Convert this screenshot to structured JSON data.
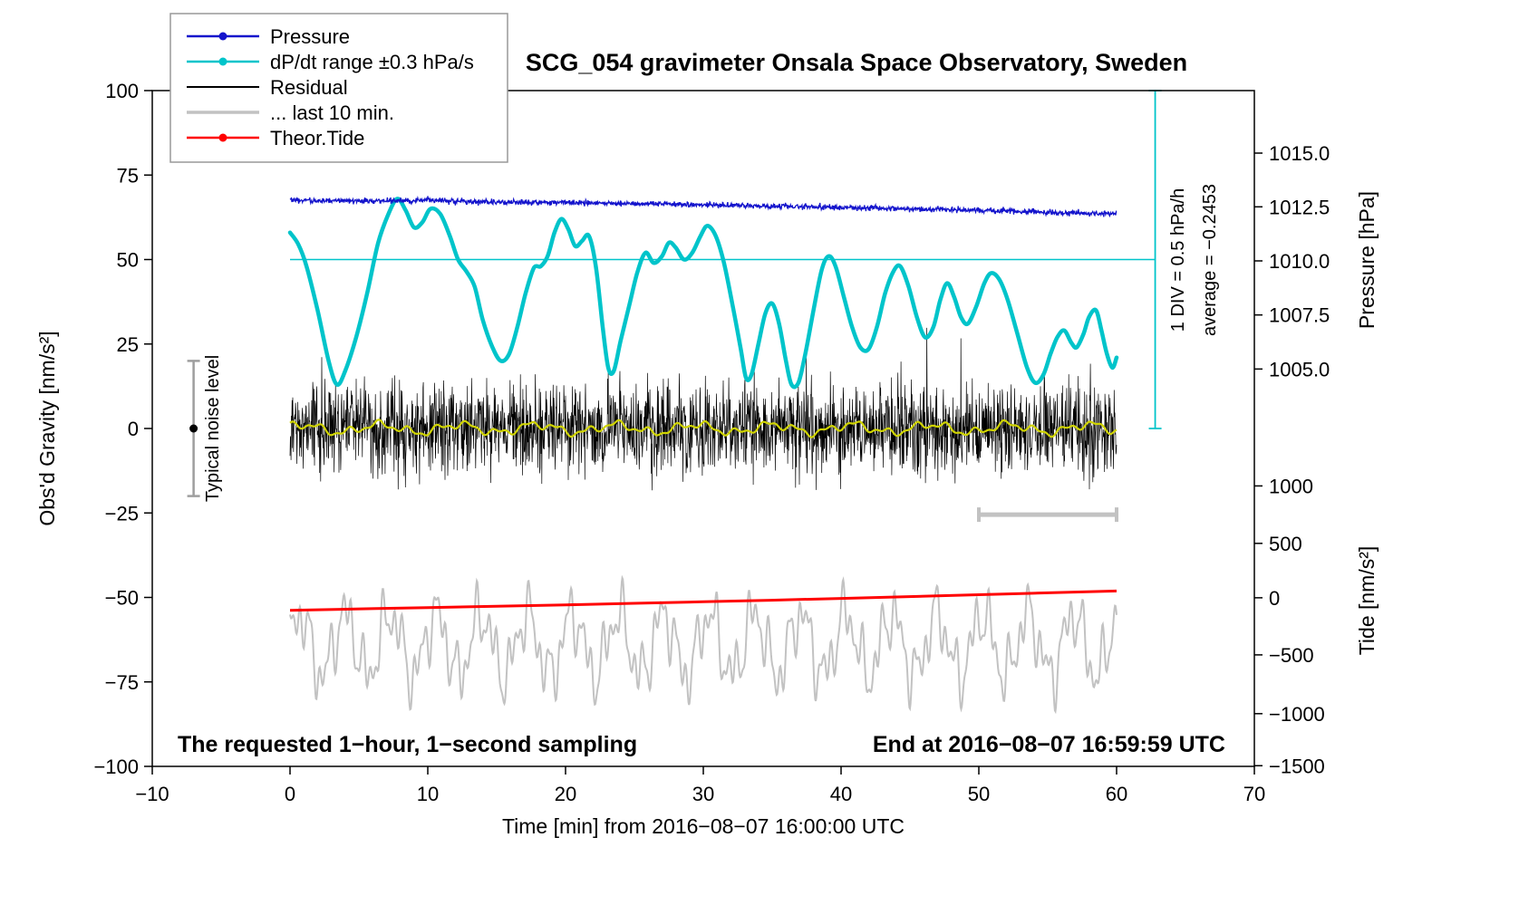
{
  "title": "SCG_054 gravimeter Onsala Space Observatory, Sweden",
  "legend": {
    "items": [
      {
        "label": "Pressure",
        "color": "#1414cc",
        "marker": true,
        "line_width": 2.5
      },
      {
        "label": "dP/dt range ±0.3 hPa/s",
        "color": "#00c4ca",
        "marker": true,
        "line_width": 2.5
      },
      {
        "label": "Residual",
        "color": "#000000",
        "marker": false,
        "line_width": 2
      },
      {
        "label": "... last 10 min.",
        "color": "#c2c2c2",
        "marker": false,
        "line_width": 3.5
      },
      {
        "label": "Theor.Tide",
        "color": "#ff0000",
        "marker": true,
        "line_width": 2.5
      }
    ]
  },
  "annotations": {
    "noise_level": "Typical noise level",
    "div_scale": "1 DIV = 0.5 hPa/h",
    "average": "average = −0.2453",
    "sampling_note": "The requested 1−hour, 1−second sampling",
    "end_time": "End at 2016−08−07 16:59:59 UTC"
  },
  "axes": {
    "x": {
      "label": "Time [min] from 2016−08−07 16:00:00 UTC",
      "min": -10,
      "max": 70,
      "ticks": [
        {
          "label": "−10",
          "v": -10
        },
        {
          "label": "0",
          "v": 0
        },
        {
          "label": "10",
          "v": 10
        },
        {
          "label": "20",
          "v": 20
        },
        {
          "label": "30",
          "v": 30
        },
        {
          "label": "40",
          "v": 40
        },
        {
          "label": "50",
          "v": 50
        },
        {
          "label": "60",
          "v": 60
        },
        {
          "label": "70",
          "v": 70
        }
      ]
    },
    "gravity": {
      "label": "Obs'd Gravity [nm/s²]",
      "min": -100,
      "max": 100,
      "ticks": [
        {
          "label": "100",
          "v": 100
        },
        {
          "label": "75",
          "v": 75
        },
        {
          "label": "50",
          "v": 50
        },
        {
          "label": "25",
          "v": 25
        },
        {
          "label": "0",
          "v": 0
        },
        {
          "label": "−25",
          "v": -25
        },
        {
          "label": "−50",
          "v": -50
        },
        {
          "label": "−75",
          "v": -75
        },
        {
          "label": "−100",
          "v": -100
        }
      ]
    },
    "pressure": {
      "label": "Pressure [hPa]",
      "ticks": [
        {
          "label": "1015.0",
          "g": 81.5
        },
        {
          "label": "1012.5",
          "g": 65.6
        },
        {
          "label": "1010.0",
          "g": 49.6
        },
        {
          "label": "1007.5",
          "g": 33.6
        },
        {
          "label": "1005.0",
          "g": 17.6
        },
        {
          "label": "1000",
          "g": -17.0
        }
      ]
    },
    "tide": {
      "label": "Tide [nm/s²]",
      "ticks": [
        {
          "label": "500",
          "g": -34.0
        },
        {
          "label": "0",
          "g": -50.1
        },
        {
          "label": "−500",
          "g": -67.0
        },
        {
          "label": "−1000",
          "g": -84.4
        },
        {
          "label": "−1500",
          "g": -99.8
        }
      ]
    }
  },
  "chart_data": {
    "type": "line",
    "title": "SCG_054 gravimeter Onsala Space Observatory, Sweden",
    "xlabel": "Time [min] from 2016−08−07 16:00:00 UTC",
    "ylabel": "Obs'd Gravity [nm/s²]",
    "xlim": [
      -10,
      70
    ],
    "ylim": [
      -100,
      100
    ],
    "grid": false,
    "legend_position": "top-left",
    "series": [
      {
        "id": "pressure",
        "name": "Pressure",
        "color": "#1414cc",
        "axis": "right-pressure",
        "x": [
          0,
          5,
          10,
          15,
          20,
          25,
          30,
          35,
          40,
          45,
          50,
          55,
          60
        ],
        "y_gravity": [
          67.5,
          67.3,
          67.6,
          67.0,
          66.8,
          66.5,
          66.2,
          65.8,
          65.4,
          65.0,
          64.6,
          64.0,
          63.4
        ],
        "values_hpa": [
          1012.8,
          1012.8,
          1012.8,
          1012.7,
          1012.7,
          1012.6,
          1012.6,
          1012.5,
          1012.4,
          1012.4,
          1012.3,
          1012.2,
          1012.1
        ],
        "noise_std": 0.4
      },
      {
        "id": "dpdt",
        "name": "dP/dt range ±0.3 hPa/s",
        "color": "#00c4ca",
        "zero_level_gravity": 50,
        "points": [
          [
            0,
            58
          ],
          [
            0.6,
            54.5
          ],
          [
            1.2,
            48
          ],
          [
            2,
            35
          ],
          [
            2.8,
            20
          ],
          [
            3.4,
            13
          ],
          [
            4,
            17
          ],
          [
            4.8,
            27
          ],
          [
            5.6,
            40
          ],
          [
            6.4,
            55
          ],
          [
            7.2,
            64
          ],
          [
            7.8,
            68
          ],
          [
            8.4,
            64.5
          ],
          [
            9,
            59.5
          ],
          [
            9.6,
            61
          ],
          [
            10.2,
            65
          ],
          [
            10.9,
            63.5
          ],
          [
            11.6,
            57
          ],
          [
            12.2,
            50
          ],
          [
            12.8,
            46.5
          ],
          [
            13.4,
            42
          ],
          [
            14,
            32
          ],
          [
            14.7,
            24
          ],
          [
            15.3,
            20
          ],
          [
            15.9,
            22
          ],
          [
            16.5,
            30
          ],
          [
            17.1,
            40
          ],
          [
            17.7,
            47.5
          ],
          [
            18.2,
            48
          ],
          [
            18.7,
            51
          ],
          [
            19.2,
            58
          ],
          [
            19.7,
            62
          ],
          [
            20.2,
            59
          ],
          [
            20.7,
            54
          ],
          [
            21.2,
            55.5
          ],
          [
            21.7,
            57
          ],
          [
            22.2,
            48
          ],
          [
            22.7,
            30
          ],
          [
            23.1,
            18
          ],
          [
            23.5,
            17
          ],
          [
            24,
            26
          ],
          [
            24.6,
            36
          ],
          [
            25.2,
            46
          ],
          [
            25.8,
            52
          ],
          [
            26.4,
            49
          ],
          [
            27,
            51
          ],
          [
            27.5,
            55
          ],
          [
            28,
            53.5
          ],
          [
            28.6,
            50
          ],
          [
            29.2,
            52
          ],
          [
            29.8,
            57
          ],
          [
            30.3,
            60
          ],
          [
            30.9,
            57
          ],
          [
            31.5,
            49
          ],
          [
            32.1,
            37
          ],
          [
            32.7,
            24
          ],
          [
            33.1,
            15
          ],
          [
            33.5,
            16
          ],
          [
            34,
            25
          ],
          [
            34.5,
            34
          ],
          [
            35,
            37
          ],
          [
            35.5,
            31
          ],
          [
            36,
            20
          ],
          [
            36.4,
            13
          ],
          [
            36.9,
            13.5
          ],
          [
            37.4,
            22
          ],
          [
            38,
            35
          ],
          [
            38.6,
            47
          ],
          [
            39.1,
            51
          ],
          [
            39.6,
            48
          ],
          [
            40.2,
            39
          ],
          [
            40.8,
            30
          ],
          [
            41.4,
            24
          ],
          [
            42,
            23.5
          ],
          [
            42.6,
            30
          ],
          [
            43.2,
            40
          ],
          [
            43.8,
            46.5
          ],
          [
            44.3,
            48
          ],
          [
            44.9,
            42
          ],
          [
            45.5,
            33
          ],
          [
            46.1,
            27
          ],
          [
            46.7,
            30
          ],
          [
            47.2,
            38
          ],
          [
            47.7,
            43
          ],
          [
            48.2,
            39
          ],
          [
            48.7,
            33
          ],
          [
            49.2,
            31
          ],
          [
            49.8,
            36
          ],
          [
            50.4,
            43
          ],
          [
            50.9,
            46
          ],
          [
            51.5,
            44
          ],
          [
            52.1,
            38
          ],
          [
            52.8,
            28
          ],
          [
            53.5,
            18
          ],
          [
            54.1,
            13.5
          ],
          [
            54.7,
            16
          ],
          [
            55.2,
            22
          ],
          [
            55.7,
            27
          ],
          [
            56.2,
            29
          ],
          [
            56.7,
            25.5
          ],
          [
            57.1,
            24
          ],
          [
            57.6,
            28
          ],
          [
            58,
            33
          ],
          [
            58.5,
            35
          ],
          [
            58.9,
            29
          ],
          [
            59.3,
            22
          ],
          [
            59.7,
            18
          ],
          [
            60,
            21
          ]
        ]
      },
      {
        "id": "residual",
        "name": "Residual",
        "color": "#000000",
        "x_range": [
          0,
          60
        ],
        "mean": 0,
        "std": 6.5,
        "clip": 30,
        "n": 2400
      },
      {
        "id": "residual_smooth",
        "name": "Residual (smoothed)",
        "color": "#d0d400",
        "center": 0,
        "harmonics": [
          [
            1.2,
            1.1,
            0.7
          ],
          [
            0.9,
            2.9,
            1.8
          ],
          [
            0.5,
            6.1,
            0.0
          ]
        ]
      },
      {
        "id": "last10",
        "name": "... last 10 min.",
        "color": "#c2c2c2",
        "center": -64,
        "harmonics": [
          [
            9,
            1.9,
            0.3
          ],
          [
            5,
            4.7,
            1.2
          ],
          [
            4.5,
            8.3,
            2.1
          ],
          [
            3,
            13.7,
            4.0
          ]
        ]
      },
      {
        "id": "tide",
        "name": "Theor.Tide",
        "color": "#ff0000",
        "axis": "right-tide",
        "x": [
          0,
          10,
          20,
          30,
          40,
          50,
          60
        ],
        "y_gravity": [
          -53.8,
          -53.0,
          -52.2,
          -51.3,
          -50.3,
          -49.2,
          -48.1
        ],
        "values_tide_nms2": [
          -115,
          -91,
          -66,
          -39,
          -9,
          24,
          57
        ]
      }
    ],
    "overlays": {
      "dpdt_zero_line": {
        "y_gravity": 50,
        "x_range": [
          0,
          62.8
        ],
        "color": "#00c4ca"
      },
      "div_bar": {
        "x": 62.8,
        "gravity_range": [
          0,
          100
        ],
        "color": "#00c4ca"
      },
      "last10_window_bar": {
        "x_range": [
          50,
          60
        ],
        "y_gravity": -25.5,
        "color": "#c2c2c2"
      },
      "noise_errorbar": {
        "x": -7,
        "gravity_range": [
          -20,
          20
        ],
        "dot_gravity": 0,
        "color": "#9e9e9e"
      }
    }
  }
}
